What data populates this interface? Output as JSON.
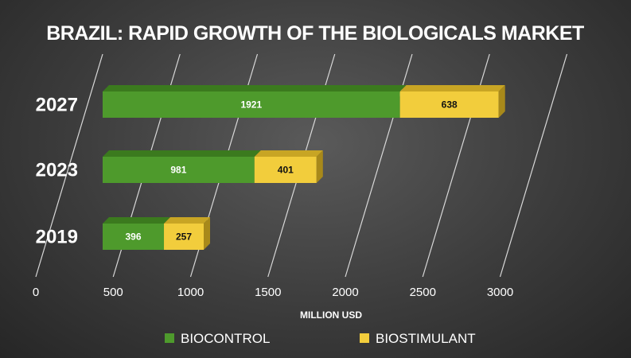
{
  "chart_data": {
    "type": "bar",
    "orientation": "horizontal",
    "stacked": true,
    "title": "BRAZIL: RAPID GROWTH OF THE BIOLOGICALS MARKET",
    "xlabel": "MILLION USD",
    "ylabel": "",
    "xlim": [
      0,
      3000
    ],
    "xticks": [
      "0",
      "500",
      "1000",
      "1500",
      "2000",
      "2500",
      "3000"
    ],
    "categories": [
      "2027",
      "2023",
      "2019"
    ],
    "series": [
      {
        "name": "BIOCONTROL",
        "values": [
          1921,
          981,
          396
        ],
        "color": "#4e9a2c",
        "top_color": "#3b7a1e",
        "side_color": "#2f6516"
      },
      {
        "name": "BIOSTIMULANT",
        "values": [
          638,
          401,
          257
        ],
        "color": "#f2cd3c",
        "top_color": "#c8a524",
        "side_color": "#a8891a"
      }
    ],
    "legend": "bottom",
    "grid": true
  }
}
